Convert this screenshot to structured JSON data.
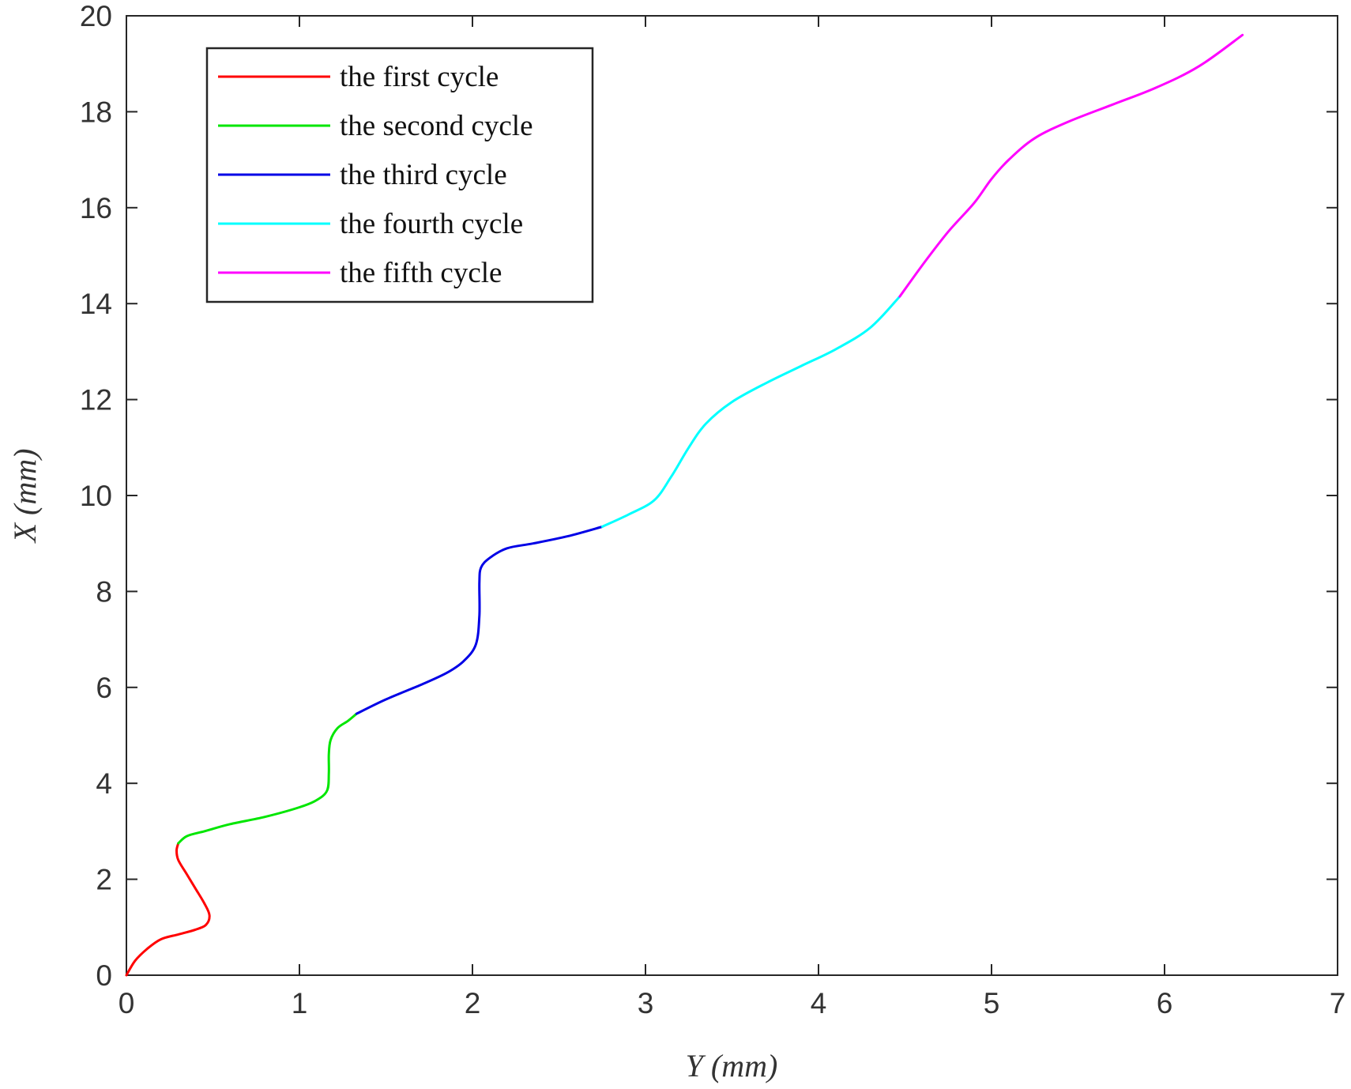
{
  "chart_data": {
    "type": "line",
    "title": "",
    "xlabel": "Y (mm)",
    "ylabel": "X (mm)",
    "xlim": [
      0,
      7
    ],
    "ylim": [
      0,
      20
    ],
    "xticks": [
      0,
      1,
      2,
      3,
      4,
      5,
      6,
      7
    ],
    "yticks": [
      0,
      2,
      4,
      6,
      8,
      10,
      12,
      14,
      16,
      18,
      20
    ],
    "grid": false,
    "legend_position": "top-left",
    "series": [
      {
        "name": "the first cycle",
        "color": "#ff0000",
        "x": [
          0,
          0.05,
          0.12,
          0.2,
          0.3,
          0.4,
          0.46,
          0.48,
          0.45,
          0.4,
          0.35,
          0.3,
          0.29,
          0.3
        ],
        "y": [
          0,
          0.3,
          0.55,
          0.75,
          0.85,
          0.95,
          1.05,
          1.25,
          1.5,
          1.8,
          2.1,
          2.4,
          2.6,
          2.75
        ]
      },
      {
        "name": "the second cycle",
        "color": "#00e600",
        "x": [
          0.3,
          0.35,
          0.45,
          0.6,
          0.8,
          1.0,
          1.1,
          1.16,
          1.17,
          1.17,
          1.18,
          1.22,
          1.28,
          1.33
        ],
        "y": [
          2.75,
          2.9,
          3.0,
          3.15,
          3.3,
          3.5,
          3.65,
          3.85,
          4.2,
          4.6,
          4.9,
          5.15,
          5.3,
          5.45
        ]
      },
      {
        "name": "the third cycle",
        "color": "#0000e6",
        "x": [
          1.33,
          1.5,
          1.7,
          1.85,
          1.95,
          2.02,
          2.04,
          2.04,
          2.05,
          2.1,
          2.2,
          2.35,
          2.55,
          2.75
        ],
        "y": [
          5.45,
          5.75,
          6.05,
          6.3,
          6.55,
          6.9,
          7.5,
          8.2,
          8.5,
          8.7,
          8.9,
          9.0,
          9.15,
          9.35
        ]
      },
      {
        "name": "the fourth cycle",
        "color": "#00ffff",
        "x": [
          2.75,
          2.9,
          3.05,
          3.15,
          3.25,
          3.35,
          3.5,
          3.7,
          3.9,
          4.1,
          4.3,
          4.47
        ],
        "y": [
          9.35,
          9.6,
          9.9,
          10.4,
          11.0,
          11.5,
          11.95,
          12.35,
          12.7,
          13.05,
          13.5,
          14.15
        ]
      },
      {
        "name": "the fifth cycle",
        "color": "#ff00ff",
        "x": [
          4.47,
          4.6,
          4.75,
          4.9,
          5.0,
          5.1,
          5.25,
          5.45,
          5.7,
          5.95,
          6.2,
          6.45
        ],
        "y": [
          14.15,
          14.8,
          15.5,
          16.1,
          16.6,
          17.0,
          17.45,
          17.8,
          18.15,
          18.5,
          18.95,
          19.6
        ]
      }
    ]
  }
}
